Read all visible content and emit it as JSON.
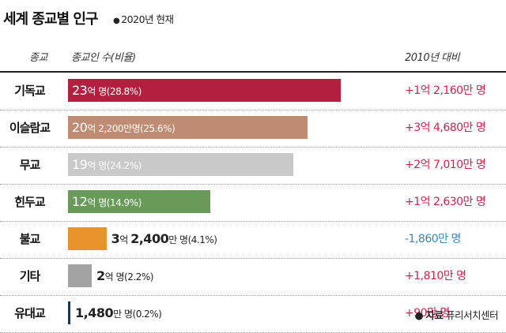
{
  "header": {
    "title": "세계 종교별 인구",
    "subtitle": "2020년 현재"
  },
  "columns": {
    "religion": "종교",
    "population": "종교인 수(비율)",
    "change": "2010년 대비"
  },
  "chart_data": {
    "type": "bar",
    "title": "세계 종교별 인구",
    "subtitle": "2020년 현재",
    "xlabel": "종교인 수(비율)",
    "ylabel": "종교",
    "unit": "명",
    "xlim": [
      0,
      2300000000
    ],
    "categories": [
      "기독교",
      "이슬람교",
      "무교",
      "힌두교",
      "불교",
      "기타",
      "유대교"
    ],
    "values": [
      2300000000,
      2022000000,
      1900000000,
      1200000000,
      324000000,
      200000000,
      14800000
    ],
    "value_labels": [
      {
        "num": "23",
        "unit": "억 명",
        "share": "(28.8%)"
      },
      {
        "num": "20",
        "unit": "억 2,200만명",
        "share": "(25.6%)"
      },
      {
        "num": "19",
        "unit": "억 명",
        "share": "(24.2%)"
      },
      {
        "num": "12",
        "unit": "억 명",
        "share": "(14.9%)"
      },
      {
        "num": "3",
        "unit": "억 ",
        "num2": "2,400",
        "unit2": "만 명",
        "share": "(4.1%)"
      },
      {
        "num": "2",
        "unit": "억 명",
        "share": "(2.2%)"
      },
      {
        "num": "1,480",
        "unit": "만 명",
        "share": "(0.2%)"
      }
    ],
    "shares_percent": [
      28.8,
      25.6,
      24.2,
      14.9,
      4.1,
      2.2,
      0.2
    ],
    "colors": [
      "#b3203f",
      "#bf8b72",
      "#c9c9c9",
      "#6a9a5a",
      "#e8922c",
      "#a3a3a3",
      "#1f3656"
    ],
    "change_vs_2010": [
      "+1억 2,160만 명",
      "+3억 4,680만 명",
      "+2억 7,010만 명",
      "+1억 2,630만 명",
      "-1,860만 명",
      "+1,810만 명",
      "+90만 명"
    ],
    "change_colors": [
      "#d2224a",
      "#d2224a",
      "#d2224a",
      "#d2224a",
      "#3b86c4",
      "#d2224a",
      "#d2224a"
    ]
  },
  "source": {
    "label": "자료",
    "text": "퓨리서치센터"
  }
}
